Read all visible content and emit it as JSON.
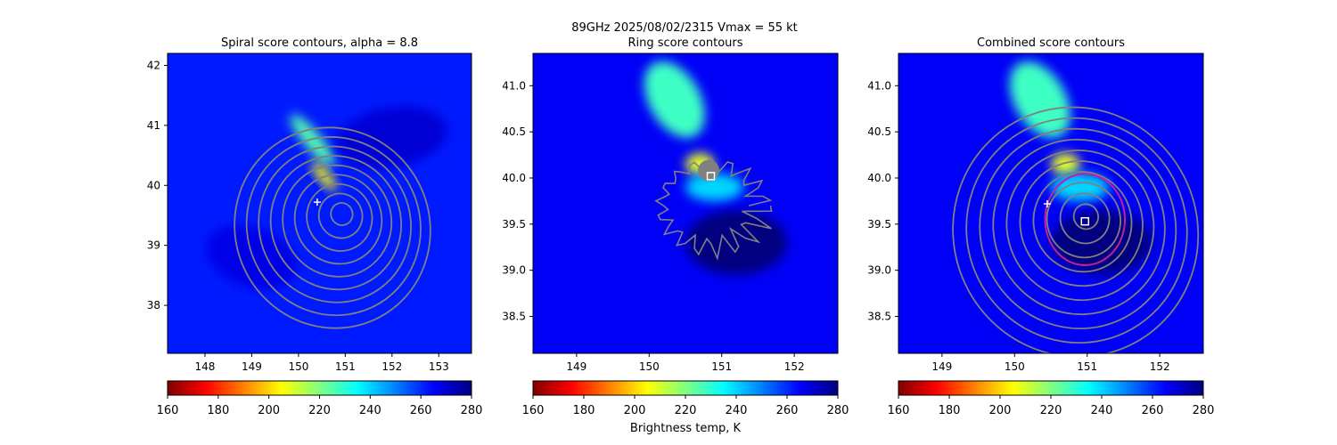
{
  "suptitle": {
    "line1": "89GHz  2025/08/02/2315    Vmax = 55 kt"
  },
  "colorbar_label": "Brightness temp, K",
  "colormap": [
    "#800000",
    "#ff0000",
    "#ff8000",
    "#ffff00",
    "#80ff80",
    "#00ffff",
    "#0080ff",
    "#0000ff",
    "#000080"
  ],
  "contour_color": "#808080",
  "ring_color": "#c020a0",
  "chart_data": [
    {
      "type": "heatmap",
      "title": "Spiral score contours, alpha =  8.8",
      "xlim": [
        147.2,
        153.7
      ],
      "ylim": [
        37.2,
        42.2
      ],
      "xticks": [
        "148",
        "149",
        "150",
        "151",
        "152",
        "153"
      ],
      "xtick_values": [
        148,
        149,
        150,
        151,
        152,
        153
      ],
      "yticks": [
        "38",
        "39",
        "40",
        "41",
        "42"
      ],
      "ytick_values": [
        38,
        39,
        40,
        41,
        42
      ],
      "background_tb": 262,
      "features": [
        {
          "x": 150.3,
          "y": 40.75,
          "sx": 0.18,
          "sy": 0.55,
          "tb": 225,
          "rot": -40
        },
        {
          "x": 150.55,
          "y": 40.15,
          "sx": 0.12,
          "sy": 0.3,
          "tb": 205,
          "rot": -40
        },
        {
          "x": 152.0,
          "y": 40.8,
          "sx": 1.2,
          "sy": 0.5,
          "tb": 270,
          "rot": -10
        },
        {
          "x": 149.0,
          "y": 38.8,
          "sx": 1.0,
          "sy": 0.5,
          "tb": 268,
          "rot": 20
        }
      ],
      "center_contours": {
        "x": 150.95,
        "y": 39.55,
        "levels": 9,
        "step": 0.22
      },
      "marker_plus": {
        "x": 150.4,
        "y": 39.72
      },
      "colorbar": {
        "ticks": [
          "160",
          "180",
          "200",
          "220",
          "240",
          "260",
          "280"
        ],
        "range": [
          160,
          280
        ]
      }
    },
    {
      "type": "heatmap",
      "title": "Ring score contours",
      "xlim": [
        148.4,
        152.6
      ],
      "ylim": [
        38.1,
        41.35
      ],
      "xticks": [
        "149",
        "150",
        "151",
        "152"
      ],
      "xtick_values": [
        149,
        150,
        151,
        152
      ],
      "yticks": [
        "38.5",
        "39.0",
        "39.5",
        "40.0",
        "40.5",
        "41.0"
      ],
      "ytick_values": [
        38.5,
        39.0,
        39.5,
        40.0,
        40.5,
        41.0
      ],
      "background_tb": 266,
      "features": [
        {
          "x": 150.35,
          "y": 40.85,
          "sx": 0.35,
          "sy": 0.45,
          "tb": 228,
          "rot": -30
        },
        {
          "x": 150.7,
          "y": 40.15,
          "sx": 0.2,
          "sy": 0.12,
          "tb": 208,
          "rot": 0
        },
        {
          "x": 150.9,
          "y": 39.9,
          "sx": 0.4,
          "sy": 0.15,
          "tb": 240,
          "rot": 0
        },
        {
          "x": 151.2,
          "y": 39.3,
          "sx": 0.7,
          "sy": 0.35,
          "tb": 285,
          "rot": 0
        }
      ],
      "marker_square": {
        "x": 150.85,
        "y": 40.02
      },
      "colorbar": {
        "ticks": [
          "160",
          "180",
          "200",
          "220",
          "240",
          "260",
          "280"
        ],
        "range": [
          160,
          280
        ]
      }
    },
    {
      "type": "heatmap",
      "title": "Combined score contours",
      "xlim": [
        148.4,
        152.6
      ],
      "ylim": [
        38.1,
        41.35
      ],
      "xticks": [
        "149",
        "150",
        "151",
        "152"
      ],
      "xtick_values": [
        149,
        150,
        151,
        152
      ],
      "yticks": [
        "38.5",
        "39.0",
        "39.5",
        "40.0",
        "40.5",
        "41.0"
      ],
      "ytick_values": [
        38.5,
        39.0,
        39.5,
        40.0,
        40.5,
        41.0
      ],
      "background_tb": 266,
      "features": [
        {
          "x": 150.35,
          "y": 40.85,
          "sx": 0.35,
          "sy": 0.45,
          "tb": 228,
          "rot": -30
        },
        {
          "x": 150.7,
          "y": 40.15,
          "sx": 0.2,
          "sy": 0.12,
          "tb": 208,
          "rot": 0
        },
        {
          "x": 150.9,
          "y": 39.9,
          "sx": 0.4,
          "sy": 0.15,
          "tb": 240,
          "rot": 0
        },
        {
          "x": 151.2,
          "y": 39.3,
          "sx": 0.7,
          "sy": 0.35,
          "tb": 285,
          "rot": 0
        }
      ],
      "center_contours": {
        "x": 151.0,
        "y": 39.6,
        "levels": 10,
        "step": 0.16
      },
      "marker_plus": {
        "x": 150.45,
        "y": 39.72
      },
      "marker_square": {
        "x": 150.97,
        "y": 39.53
      },
      "ring": {
        "x": 150.97,
        "y": 39.55,
        "r": 0.55
      },
      "colorbar": {
        "ticks": [
          "160",
          "180",
          "200",
          "220",
          "240",
          "260",
          "280"
        ],
        "range": [
          160,
          280
        ]
      }
    }
  ]
}
